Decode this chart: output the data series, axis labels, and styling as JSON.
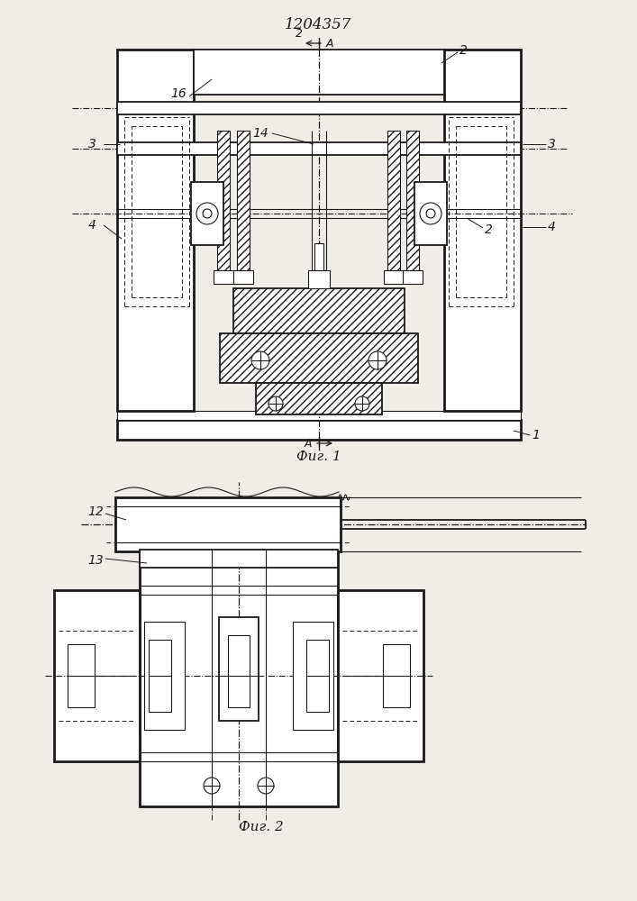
{
  "title": "1204357",
  "fig1_label": "Фиг. 1",
  "fig2_label": "Фиг. 2",
  "bg_color": "#f0ede8",
  "line_color": "#1a1a1a",
  "white": "#ffffff"
}
